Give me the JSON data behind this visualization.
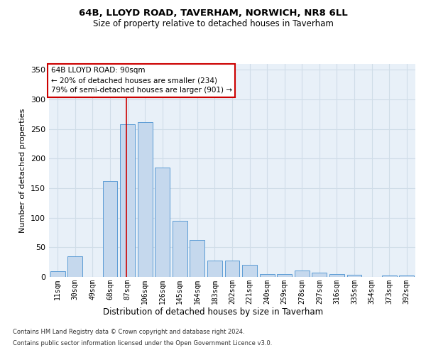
{
  "title1": "64B, LLOYD ROAD, TAVERHAM, NORWICH, NR8 6LL",
  "title2": "Size of property relative to detached houses in Taverham",
  "xlabel": "Distribution of detached houses by size in Taverham",
  "ylabel": "Number of detached properties",
  "categories": [
    "11sqm",
    "30sqm",
    "49sqm",
    "68sqm",
    "87sqm",
    "106sqm",
    "126sqm",
    "145sqm",
    "164sqm",
    "183sqm",
    "202sqm",
    "221sqm",
    "240sqm",
    "259sqm",
    "278sqm",
    "297sqm",
    "316sqm",
    "335sqm",
    "354sqm",
    "373sqm",
    "392sqm"
  ],
  "values": [
    10,
    35,
    0,
    162,
    258,
    262,
    185,
    95,
    63,
    28,
    28,
    20,
    5,
    5,
    11,
    7,
    5,
    4,
    0,
    3,
    2
  ],
  "bar_color": "#c5d8ed",
  "bar_edge_color": "#5b9bd5",
  "grid_color": "#d0dde8",
  "bg_color": "#e8f0f8",
  "annotation_line1": "64B LLOYD ROAD: 90sqm",
  "annotation_line2": "← 20% of detached houses are smaller (234)",
  "annotation_line3": "79% of semi-detached houses are larger (901) →",
  "vline_index": 4,
  "vline_color": "#cc0000",
  "footer1": "Contains HM Land Registry data © Crown copyright and database right 2024.",
  "footer2": "Contains public sector information licensed under the Open Government Licence v3.0.",
  "ylim": [
    0,
    360
  ],
  "yticks": [
    0,
    50,
    100,
    150,
    200,
    250,
    300,
    350
  ]
}
